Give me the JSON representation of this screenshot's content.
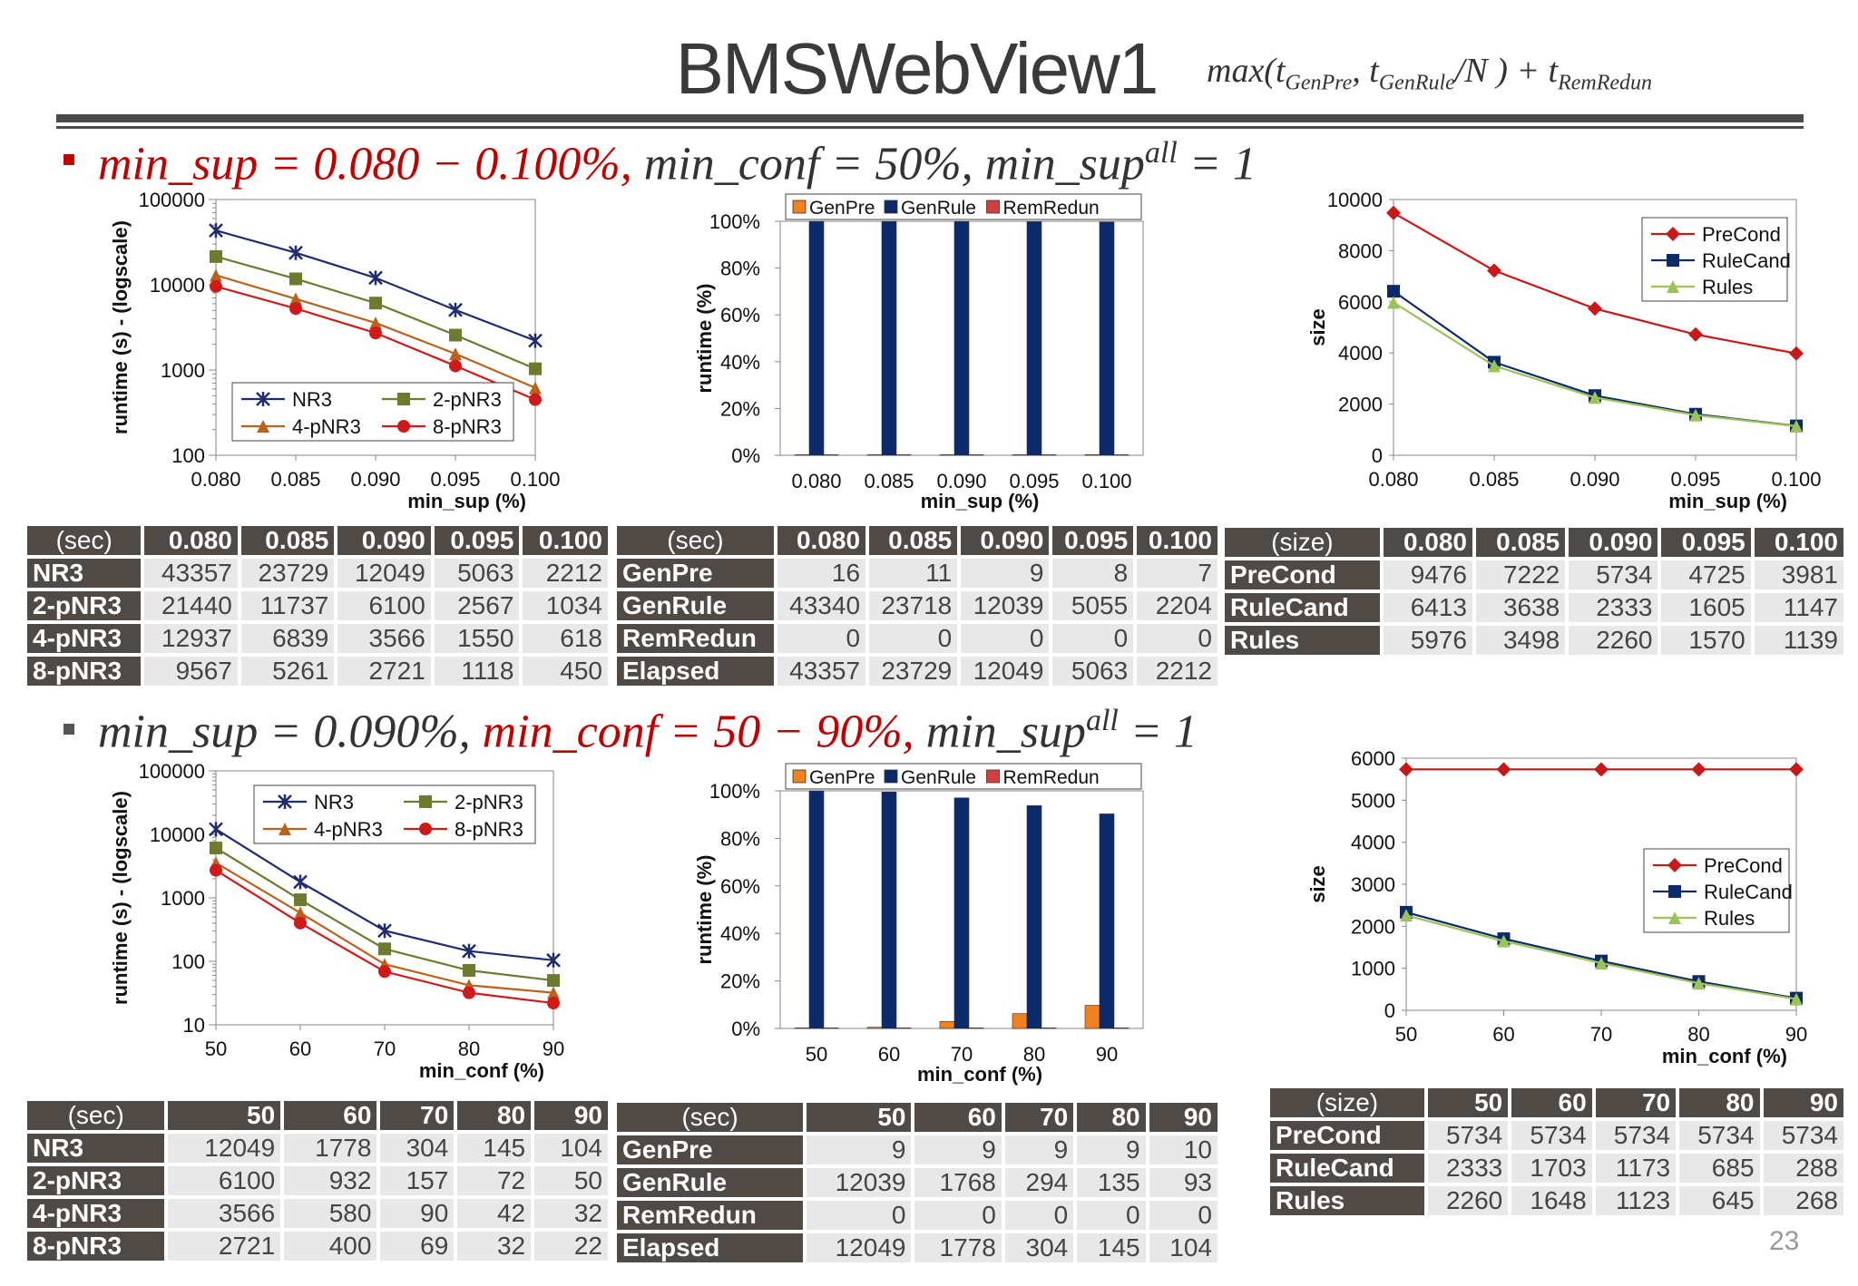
{
  "title": "BMSWebView1",
  "formula": "max(t_GenPre, t_GenRule / N ) + t_RemRedun",
  "page_number": "23",
  "section1": {
    "cond_red": "min_sup = 0.080 − 0.100%,",
    "cond_rest": " min_conf = 50%, min_sup",
    "cond_sup": "all",
    "cond_tail": " = 1"
  },
  "section2": {
    "cond_pre": "min_sup = 0.090%, ",
    "cond_red": "min_conf = 50 − 90%,",
    "cond_rest": " min_sup",
    "cond_sup": "all",
    "cond_tail": " = 1"
  },
  "colors": {
    "nr3": "#1f2d6e",
    "p2": "#6e7a2e",
    "p4": "#b8621e",
    "p8": "#d01a1a",
    "genpre": "#f08020",
    "genrule": "#0c2a6a",
    "precond": "#c81818",
    "rulecand": "#0c2a6a",
    "rules": "#9cc35a"
  },
  "chart_data": [
    {
      "type": "line",
      "id": "c1",
      "ylabel": "runtime (s) - (logscale)",
      "xlabel": "min_sup (%)",
      "yscale": "log",
      "categories": [
        "0.080",
        "0.085",
        "0.090",
        "0.095",
        "0.100"
      ],
      "yticks": [
        "100",
        "1000",
        "10000",
        "100000"
      ],
      "ylim": [
        100,
        100000
      ],
      "legend": "bottom-left",
      "series": [
        {
          "name": "NR3",
          "values": [
            43357,
            23729,
            12049,
            5063,
            2212
          ]
        },
        {
          "name": "2-pNR3",
          "values": [
            21440,
            11737,
            6100,
            2567,
            1034
          ]
        },
        {
          "name": "4-pNR3",
          "values": [
            12937,
            6839,
            3566,
            1550,
            618
          ]
        },
        {
          "name": "8-pNR3",
          "values": [
            9567,
            5261,
            2721,
            1118,
            450
          ]
        }
      ]
    },
    {
      "type": "bar",
      "stacked": "percent",
      "id": "c2",
      "ylabel": "runtime (%)",
      "xlabel": "min_sup (%)",
      "categories": [
        "0.080",
        "0.085",
        "0.090",
        "0.095",
        "0.100"
      ],
      "yticks": [
        "0%",
        "20%",
        "40%",
        "60%",
        "80%",
        "100%"
      ],
      "legend": "top",
      "series": [
        {
          "name": "GenPre",
          "values": [
            16,
            11,
            9,
            8,
            7
          ]
        },
        {
          "name": "GenRule",
          "values": [
            43340,
            23718,
            12039,
            5055,
            2204
          ]
        },
        {
          "name": "RemRedun",
          "values": [
            0,
            0,
            0,
            0,
            0
          ]
        }
      ]
    },
    {
      "type": "line",
      "id": "c3",
      "ylabel": "size",
      "xlabel": "min_sup (%)",
      "categories": [
        "0.080",
        "0.085",
        "0.090",
        "0.095",
        "0.100"
      ],
      "yticks": [
        "0",
        "2000",
        "4000",
        "6000",
        "8000",
        "10000"
      ],
      "ylim": [
        0,
        10000
      ],
      "legend": "top-right",
      "series": [
        {
          "name": "PreCond",
          "values": [
            9476,
            7222,
            5734,
            4725,
            3981
          ]
        },
        {
          "name": "RuleCand",
          "values": [
            6413,
            3638,
            2333,
            1605,
            1147
          ]
        },
        {
          "name": "Rules",
          "values": [
            5976,
            3498,
            2260,
            1570,
            1139
          ]
        }
      ]
    },
    {
      "type": "line",
      "id": "c4",
      "ylabel": "runtime (s) - (logscale)",
      "xlabel": "min_conf (%)",
      "yscale": "log",
      "categories": [
        "50",
        "60",
        "70",
        "80",
        "90"
      ],
      "yticks": [
        "10",
        "100",
        "1000",
        "10000",
        "100000"
      ],
      "ylim": [
        10,
        100000
      ],
      "legend": "top-right",
      "series": [
        {
          "name": "NR3",
          "values": [
            12049,
            1778,
            304,
            145,
            104
          ]
        },
        {
          "name": "2-pNR3",
          "values": [
            6100,
            932,
            157,
            72,
            50
          ]
        },
        {
          "name": "4-pNR3",
          "values": [
            3566,
            580,
            90,
            42,
            32
          ]
        },
        {
          "name": "8-pNR3",
          "values": [
            2721,
            400,
            69,
            32,
            22
          ]
        }
      ]
    },
    {
      "type": "bar",
      "stacked": "percent",
      "id": "c5",
      "ylabel": "runtime (%)",
      "xlabel": "min_conf (%)",
      "categories": [
        "50",
        "60",
        "70",
        "80",
        "90"
      ],
      "yticks": [
        "0%",
        "20%",
        "40%",
        "60%",
        "80%",
        "100%"
      ],
      "legend": "top",
      "series": [
        {
          "name": "GenPre",
          "values": [
            9,
            9,
            9,
            9,
            10
          ]
        },
        {
          "name": "GenRule",
          "values": [
            12039,
            1768,
            294,
            135,
            93
          ]
        },
        {
          "name": "RemRedun",
          "values": [
            0,
            0,
            0,
            0,
            0
          ]
        }
      ]
    },
    {
      "type": "line",
      "id": "c6",
      "ylabel": "size",
      "xlabel": "min_conf (%)",
      "categories": [
        "50",
        "60",
        "70",
        "80",
        "90"
      ],
      "yticks": [
        "0",
        "1000",
        "2000",
        "3000",
        "4000",
        "5000",
        "6000"
      ],
      "ylim": [
        0,
        6000
      ],
      "legend": "right",
      "series": [
        {
          "name": "PreCond",
          "values": [
            5734,
            5734,
            5734,
            5734,
            5734
          ]
        },
        {
          "name": "RuleCand",
          "values": [
            2333,
            1703,
            1173,
            685,
            288
          ]
        },
        {
          "name": "Rules",
          "values": [
            2260,
            1648,
            1123,
            645,
            268
          ]
        }
      ]
    }
  ],
  "tables": [
    {
      "id": "t1",
      "corner": "(sec)",
      "headers": [
        "0.080",
        "0.085",
        "0.090",
        "0.095",
        "0.100"
      ],
      "rows": [
        {
          "label": "NR3",
          "values": [
            "43357",
            "23729",
            "12049",
            "5063",
            "2212"
          ]
        },
        {
          "label": "2-pNR3",
          "values": [
            "21440",
            "11737",
            "6100",
            "2567",
            "1034"
          ]
        },
        {
          "label": "4-pNR3",
          "values": [
            "12937",
            "6839",
            "3566",
            "1550",
            "618"
          ]
        },
        {
          "label": "8-pNR3",
          "values": [
            "9567",
            "5261",
            "2721",
            "1118",
            "450"
          ]
        }
      ]
    },
    {
      "id": "t2",
      "corner": "(sec)",
      "headers": [
        "0.080",
        "0.085",
        "0.090",
        "0.095",
        "0.100"
      ],
      "rows": [
        {
          "label": "GenPre",
          "values": [
            "16",
            "11",
            "9",
            "8",
            "7"
          ]
        },
        {
          "label": "GenRule",
          "values": [
            "43340",
            "23718",
            "12039",
            "5055",
            "2204"
          ]
        },
        {
          "label": "RemRedun",
          "values": [
            "0",
            "0",
            "0",
            "0",
            "0"
          ]
        },
        {
          "label": "Elapsed",
          "values": [
            "43357",
            "23729",
            "12049",
            "5063",
            "2212"
          ]
        }
      ]
    },
    {
      "id": "t3",
      "corner": "(size)",
      "headers": [
        "0.080",
        "0.085",
        "0.090",
        "0.095",
        "0.100"
      ],
      "rows": [
        {
          "label": "PreCond",
          "values": [
            "9476",
            "7222",
            "5734",
            "4725",
            "3981"
          ]
        },
        {
          "label": "RuleCand",
          "values": [
            "6413",
            "3638",
            "2333",
            "1605",
            "1147"
          ]
        },
        {
          "label": "Rules",
          "values": [
            "5976",
            "3498",
            "2260",
            "1570",
            "1139"
          ]
        }
      ]
    },
    {
      "id": "t4",
      "corner": "(sec)",
      "headers": [
        "50",
        "60",
        "70",
        "80",
        "90"
      ],
      "rows": [
        {
          "label": "NR3",
          "values": [
            "12049",
            "1778",
            "304",
            "145",
            "104"
          ]
        },
        {
          "label": "2-pNR3",
          "values": [
            "6100",
            "932",
            "157",
            "72",
            "50"
          ]
        },
        {
          "label": "4-pNR3",
          "values": [
            "3566",
            "580",
            "90",
            "42",
            "32"
          ]
        },
        {
          "label": "8-pNR3",
          "values": [
            "2721",
            "400",
            "69",
            "32",
            "22"
          ]
        }
      ]
    },
    {
      "id": "t5",
      "corner": "(sec)",
      "headers": [
        "50",
        "60",
        "70",
        "80",
        "90"
      ],
      "rows": [
        {
          "label": "GenPre",
          "values": [
            "9",
            "9",
            "9",
            "9",
            "10"
          ]
        },
        {
          "label": "GenRule",
          "values": [
            "12039",
            "1768",
            "294",
            "135",
            "93"
          ]
        },
        {
          "label": "RemRedun",
          "values": [
            "0",
            "0",
            "0",
            "0",
            "0"
          ]
        },
        {
          "label": "Elapsed",
          "values": [
            "12049",
            "1778",
            "304",
            "145",
            "104"
          ]
        }
      ]
    },
    {
      "id": "t6",
      "corner": "(size)",
      "headers": [
        "50",
        "60",
        "70",
        "80",
        "90"
      ],
      "rows": [
        {
          "label": "PreCond",
          "values": [
            "5734",
            "5734",
            "5734",
            "5734",
            "5734"
          ]
        },
        {
          "label": "RuleCand",
          "values": [
            "2333",
            "1703",
            "1173",
            "685",
            "288"
          ]
        },
        {
          "label": "Rules",
          "values": [
            "2260",
            "1648",
            "1123",
            "645",
            "268"
          ]
        }
      ]
    }
  ]
}
